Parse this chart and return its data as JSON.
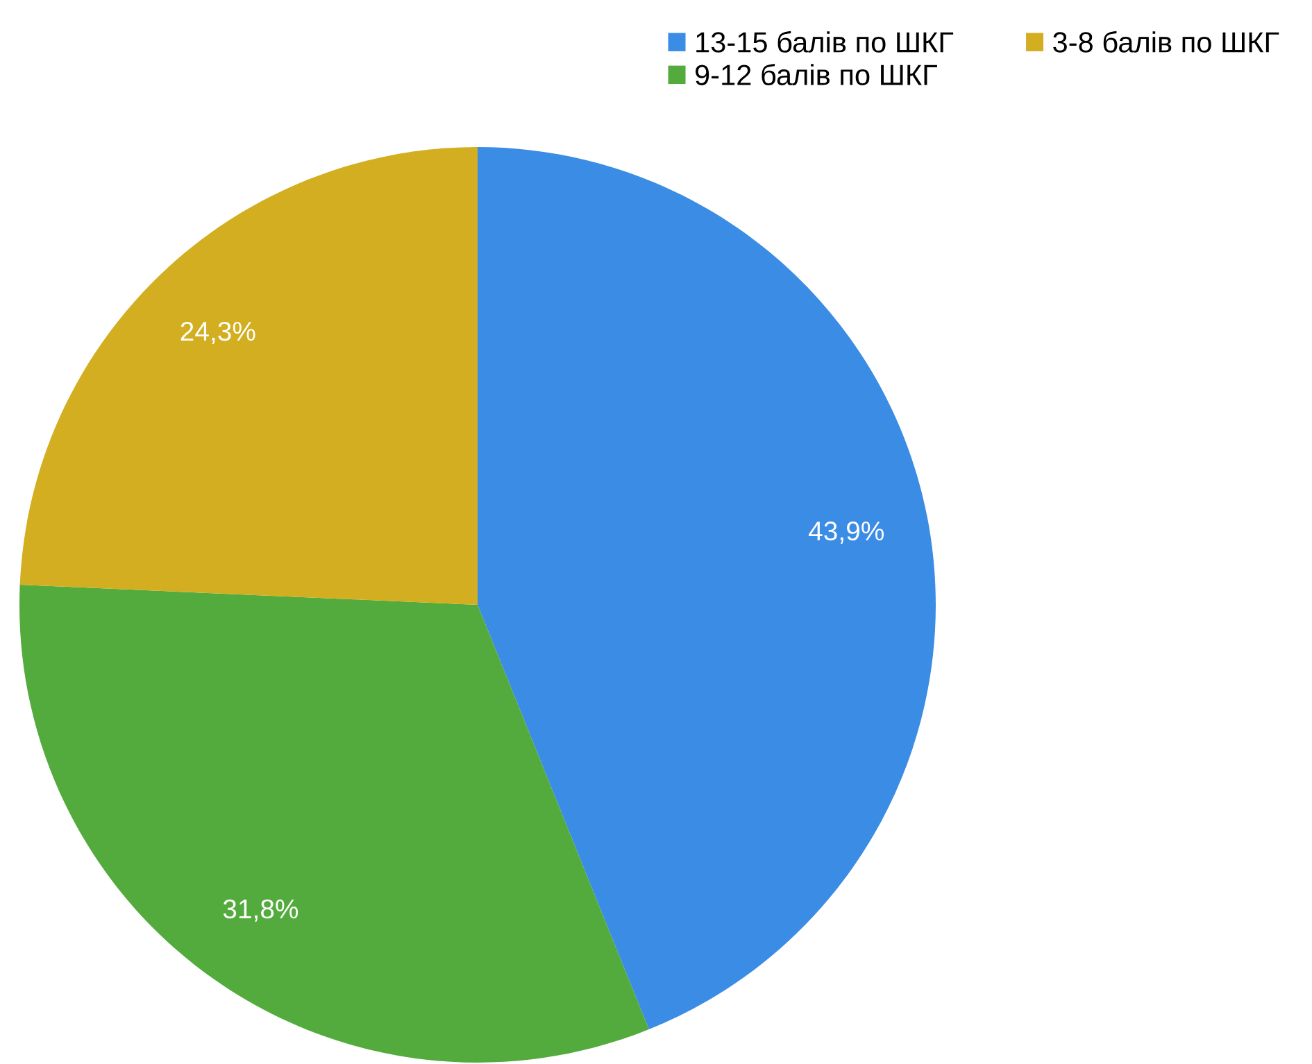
{
  "chart_data": {
    "type": "pie",
    "categories": [
      "13-15 балів по ШКГ",
      "9-12 балів по ШКГ",
      "3-8 балів по ШКГ"
    ],
    "values": [
      43.9,
      31.8,
      24.3
    ],
    "colors": [
      "#3b8ce4",
      "#52ab3c",
      "#d3ae21"
    ],
    "value_labels": [
      "43,9%",
      "31,8%",
      "24,3%"
    ],
    "legend": "top right"
  }
}
